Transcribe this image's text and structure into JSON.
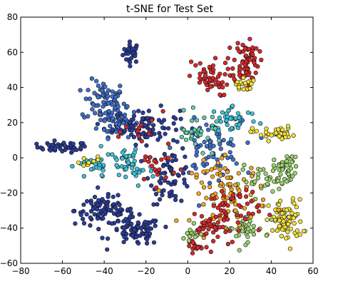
{
  "chart_data": {
    "type": "scatter",
    "title": "t-SNE for Test Set",
    "xlabel": "",
    "ylabel": "",
    "xlim": [
      -80,
      60
    ],
    "ylim": [
      -60,
      80
    ],
    "xticks": [
      -80,
      -60,
      -40,
      -20,
      0,
      20,
      40,
      60
    ],
    "yticks": [
      -60,
      -40,
      -20,
      0,
      20,
      40,
      60,
      80
    ],
    "grid": false,
    "legend": "none",
    "colors": {
      "navy": "#2b3d9a",
      "blue": "#3f6fd0",
      "cyan": "#3ec4d8",
      "teal": "#5fd0a8",
      "green": "#9bd46a",
      "yellow": "#f2e03a",
      "orange": "#f5a623",
      "red": "#d8282a"
    },
    "clusters": [
      {
        "color": "navy",
        "n": 30,
        "center": [
          -27,
          60
        ],
        "spread": [
          2,
          3
        ]
      },
      {
        "color": "navy",
        "n": 45,
        "center": [
          -60,
          6
        ],
        "spread": [
          6,
          1.5
        ]
      },
      {
        "color": "blue",
        "n": 70,
        "center": [
          -40,
          32
        ],
        "spread": [
          5,
          6
        ]
      },
      {
        "color": "blue",
        "n": 60,
        "center": [
          -33,
          20
        ],
        "spread": [
          5,
          4
        ]
      },
      {
        "color": "navy",
        "n": 80,
        "center": [
          -20,
          18
        ],
        "spread": [
          8,
          5
        ]
      },
      {
        "color": "navy",
        "n": 90,
        "center": [
          -40,
          -30
        ],
        "spread": [
          7,
          4
        ]
      },
      {
        "color": "navy",
        "n": 80,
        "center": [
          -25,
          -42
        ],
        "spread": [
          6,
          4
        ]
      },
      {
        "color": "navy",
        "n": 60,
        "center": [
          -8,
          -10
        ],
        "spread": [
          5,
          8
        ]
      },
      {
        "color": "blue",
        "n": 70,
        "center": [
          10,
          5
        ],
        "spread": [
          8,
          8
        ]
      },
      {
        "color": "cyan",
        "n": 50,
        "center": [
          -28,
          -5
        ],
        "spread": [
          6,
          6
        ]
      },
      {
        "color": "cyan",
        "n": 40,
        "center": [
          22,
          22
        ],
        "spread": [
          6,
          4
        ]
      },
      {
        "color": "red",
        "n": 70,
        "center": [
          28,
          55
        ],
        "spread": [
          3,
          7
        ]
      },
      {
        "color": "red",
        "n": 50,
        "center": [
          10,
          45
        ],
        "spread": [
          5,
          5
        ]
      },
      {
        "color": "yellow",
        "n": 20,
        "center": [
          27,
          42
        ],
        "spread": [
          2,
          2
        ]
      },
      {
        "color": "yellow",
        "n": 35,
        "center": [
          41,
          14
        ],
        "spread": [
          5,
          2
        ]
      },
      {
        "color": "yellow",
        "n": 80,
        "center": [
          47,
          -36
        ],
        "spread": [
          4,
          6
        ]
      },
      {
        "color": "green",
        "n": 40,
        "center": [
          47,
          -6
        ],
        "spread": [
          3,
          4
        ]
      },
      {
        "color": "green",
        "n": 40,
        "center": [
          27,
          -40
        ],
        "spread": [
          5,
          4
        ]
      },
      {
        "color": "green",
        "n": 30,
        "center": [
          35,
          -13
        ],
        "spread": [
          5,
          4
        ]
      },
      {
        "color": "orange",
        "n": 90,
        "center": [
          20,
          -20
        ],
        "spread": [
          9,
          9
        ]
      },
      {
        "color": "red",
        "n": 60,
        "center": [
          20,
          -30
        ],
        "spread": [
          7,
          8
        ]
      },
      {
        "color": "red",
        "n": 30,
        "center": [
          10,
          -40
        ],
        "spread": [
          3,
          3
        ]
      },
      {
        "color": "red",
        "n": 20,
        "center": [
          -15,
          -5
        ],
        "spread": [
          5,
          5
        ]
      },
      {
        "color": "teal",
        "n": 30,
        "center": [
          5,
          15
        ],
        "spread": [
          6,
          5
        ]
      },
      {
        "color": "red",
        "n": 12,
        "center": [
          -20,
          15
        ],
        "spread": [
          5,
          5
        ]
      },
      {
        "color": "cyan",
        "n": 25,
        "center": [
          -45,
          -5
        ],
        "spread": [
          4,
          4
        ]
      },
      {
        "color": "yellow",
        "n": 10,
        "center": [
          -48,
          -3
        ],
        "spread": [
          3,
          2
        ]
      },
      {
        "color": "red",
        "n": 15,
        "center": [
          3,
          -50
        ],
        "spread": [
          2,
          2
        ]
      },
      {
        "color": "green",
        "n": 12,
        "center": [
          2,
          -45
        ],
        "spread": [
          3,
          3
        ]
      }
    ]
  }
}
